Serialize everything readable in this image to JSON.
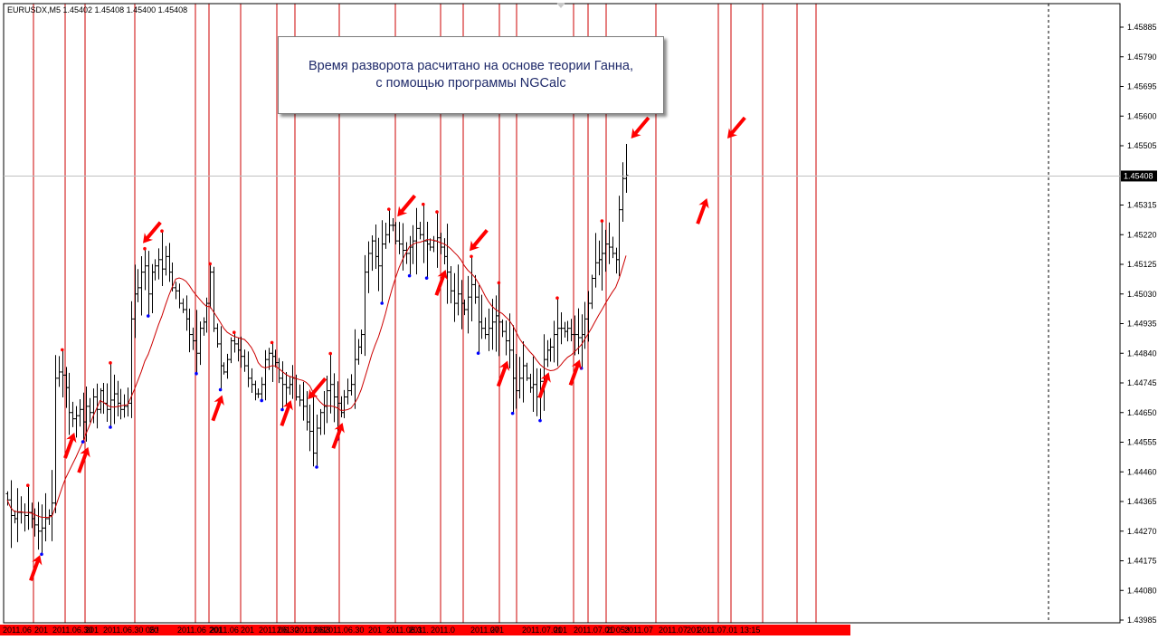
{
  "chart_data": {
    "type": "bar",
    "subtype": "ohlc",
    "symbol_label": "EURUSDX,M5  1.45402 1.45408 1.45400 1.45408",
    "annotation": {
      "line1": "Время разворота расчитано на основе теории Ганна,",
      "line2": "с помощью программы NGCalc"
    },
    "current_price_label": "1.45408",
    "y_ticks": [
      "1.45885",
      "1.45790",
      "1.45695",
      "1.45600",
      "1.45505",
      "1.45315",
      "1.45220",
      "1.45125",
      "1.45030",
      "1.44935",
      "1.44840",
      "1.44745",
      "1.44650",
      "1.44555",
      "1.44460",
      "1.44365",
      "1.44270",
      "1.44175",
      "1.44080",
      "1.43985"
    ],
    "x_labels": [
      "2011.06",
      "201",
      "2011.06.30",
      "201",
      "2011.06.30 05:!",
      "20",
      "2011.06",
      "201",
      "2011.06",
      "201",
      "2011.06.30",
      "201",
      "2011.06.3",
      "201",
      "2011.06.30",
      "201",
      "2011.06.3",
      "2011.",
      "2011.0",
      "2011.07",
      "201",
      "2011.07.01",
      "201",
      "2011.07.01 05:!",
      "20",
      "2011.07",
      "2011.07",
      "201",
      "2011.07.01 13:15"
    ],
    "ylim": [
      1.43985,
      1.4596
    ],
    "colors": {
      "bars": "#000000",
      "moving_average": "#cc0000",
      "time_lines": "#cc0000",
      "arrows": "#ff0000",
      "pivot_high_dot": "#ff0000",
      "pivot_low_dot": "#0000ff",
      "x_axis_band": "#ff0000",
      "current_price_box": "#000000"
    },
    "close_series": [
      1.4437,
      1.4432,
      1.4431,
      1.4433,
      1.4433,
      1.4432,
      1.4433,
      1.4431,
      1.4429,
      1.4427,
      1.4428,
      1.4431,
      1.4432,
      1.4436,
      1.4476,
      1.4478,
      1.4477,
      1.4473,
      1.4465,
      1.4463,
      1.4464,
      1.4466,
      1.4462,
      1.4467,
      1.4465,
      1.447,
      1.4466,
      1.4472,
      1.4468,
      1.4466,
      1.4469,
      1.4471,
      1.4468,
      1.4466,
      1.4467,
      1.4468,
      1.4495,
      1.4503,
      1.4505,
      1.451,
      1.4512,
      1.4503,
      1.451,
      1.4512,
      1.4514,
      1.4511,
      1.4515,
      1.451,
      1.4505,
      1.4504,
      1.45,
      1.4498,
      1.4495,
      1.449,
      1.4488,
      1.4484,
      1.4492,
      1.4494,
      1.45,
      1.451,
      1.4492,
      1.4487,
      1.448,
      1.4478,
      1.4482,
      1.4488,
      1.4487,
      1.4485,
      1.4483,
      1.448,
      1.4476,
      1.4474,
      1.4471,
      1.4471,
      1.4474,
      1.4482,
      1.4484,
      1.4483,
      1.4481,
      1.4476,
      1.4474,
      1.4473,
      1.4474,
      1.4476,
      1.447,
      1.4469,
      1.4467,
      1.4462,
      1.4459,
      1.4452,
      1.446,
      1.4465,
      1.4467,
      1.4472,
      1.4474,
      1.447,
      1.4468,
      1.4465,
      1.447,
      1.4472,
      1.4474,
      1.4482,
      1.4486,
      1.449,
      1.451,
      1.4516,
      1.452,
      1.4515,
      1.4512,
      1.4519,
      1.4522,
      1.4525,
      1.4525,
      1.452,
      1.4519,
      1.4517,
      1.4516,
      1.4518,
      1.452,
      1.4524,
      1.4522,
      1.452,
      1.4519,
      1.4518,
      1.452,
      1.4521,
      1.4518,
      1.4515,
      1.451,
      1.4504,
      1.45,
      1.4503,
      1.45,
      1.4498,
      1.4502,
      1.4506,
      1.4502,
      1.4494,
      1.4492,
      1.449,
      1.4492,
      1.4494,
      1.4496,
      1.4494,
      1.4491,
      1.4488,
      1.4485,
      1.4476,
      1.4472,
      1.4476,
      1.448,
      1.4476,
      1.4473,
      1.4474,
      1.447,
      1.4475,
      1.4482,
      1.4485,
      1.4486,
      1.449,
      1.4492,
      1.4492,
      1.4491,
      1.4492,
      1.449,
      1.449,
      1.4489,
      1.449,
      1.4495,
      1.45,
      1.4508,
      1.4513,
      1.4514,
      1.4516,
      1.4519,
      1.4518,
      1.4516,
      1.4514,
      1.453,
      1.454,
      1.4541
    ],
    "arrows": [
      {
        "bar": 9,
        "dir": "up"
      },
      {
        "bar": 19,
        "dir": "up"
      },
      {
        "bar": 23,
        "dir": "up"
      },
      {
        "bar": 40,
        "dir": "down"
      },
      {
        "bar": 62,
        "dir": "up"
      },
      {
        "bar": 82,
        "dir": "up"
      },
      {
        "bar": 88,
        "dir": "down"
      },
      {
        "bar": 97,
        "dir": "up"
      },
      {
        "bar": 114,
        "dir": "down"
      },
      {
        "bar": 127,
        "dir": "up"
      },
      {
        "bar": 135,
        "dir": "down"
      },
      {
        "bar": 145,
        "dir": "up"
      },
      {
        "bar": 157,
        "dir": "up"
      },
      {
        "bar": 166,
        "dir": "up"
      },
      {
        "bar": 182,
        "dir": "down"
      },
      {
        "bar": 203,
        "dir": "up"
      },
      {
        "bar": 210,
        "dir": "down"
      }
    ]
  }
}
